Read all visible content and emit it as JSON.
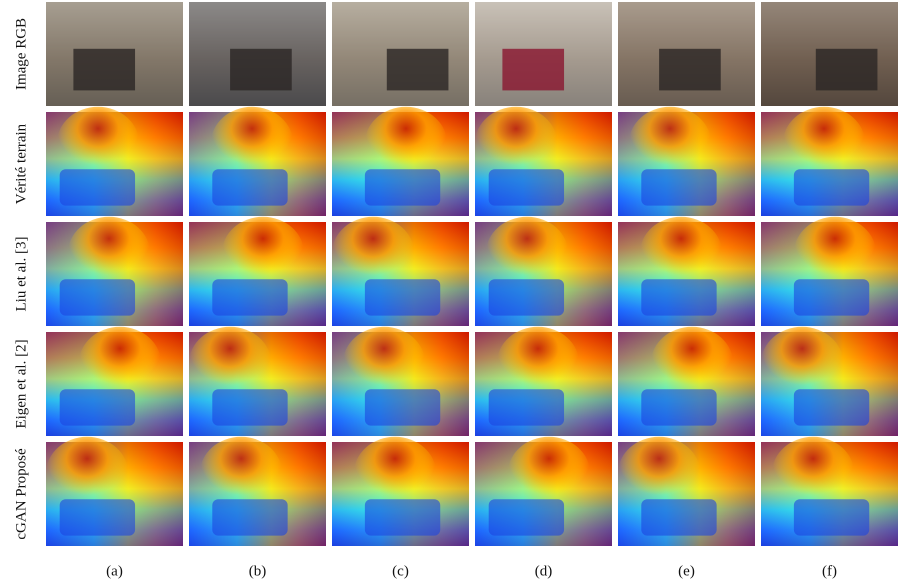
{
  "figure": {
    "row_labels": [
      "Image RGB",
      "Vérité terrain",
      "Liu et al. [3]",
      "Eigen et al. [2]",
      "cGAN Proposé"
    ],
    "column_labels": [
      "(a)",
      "(b)",
      "(c)",
      "(d)",
      "(e)",
      "(f)"
    ]
  }
}
